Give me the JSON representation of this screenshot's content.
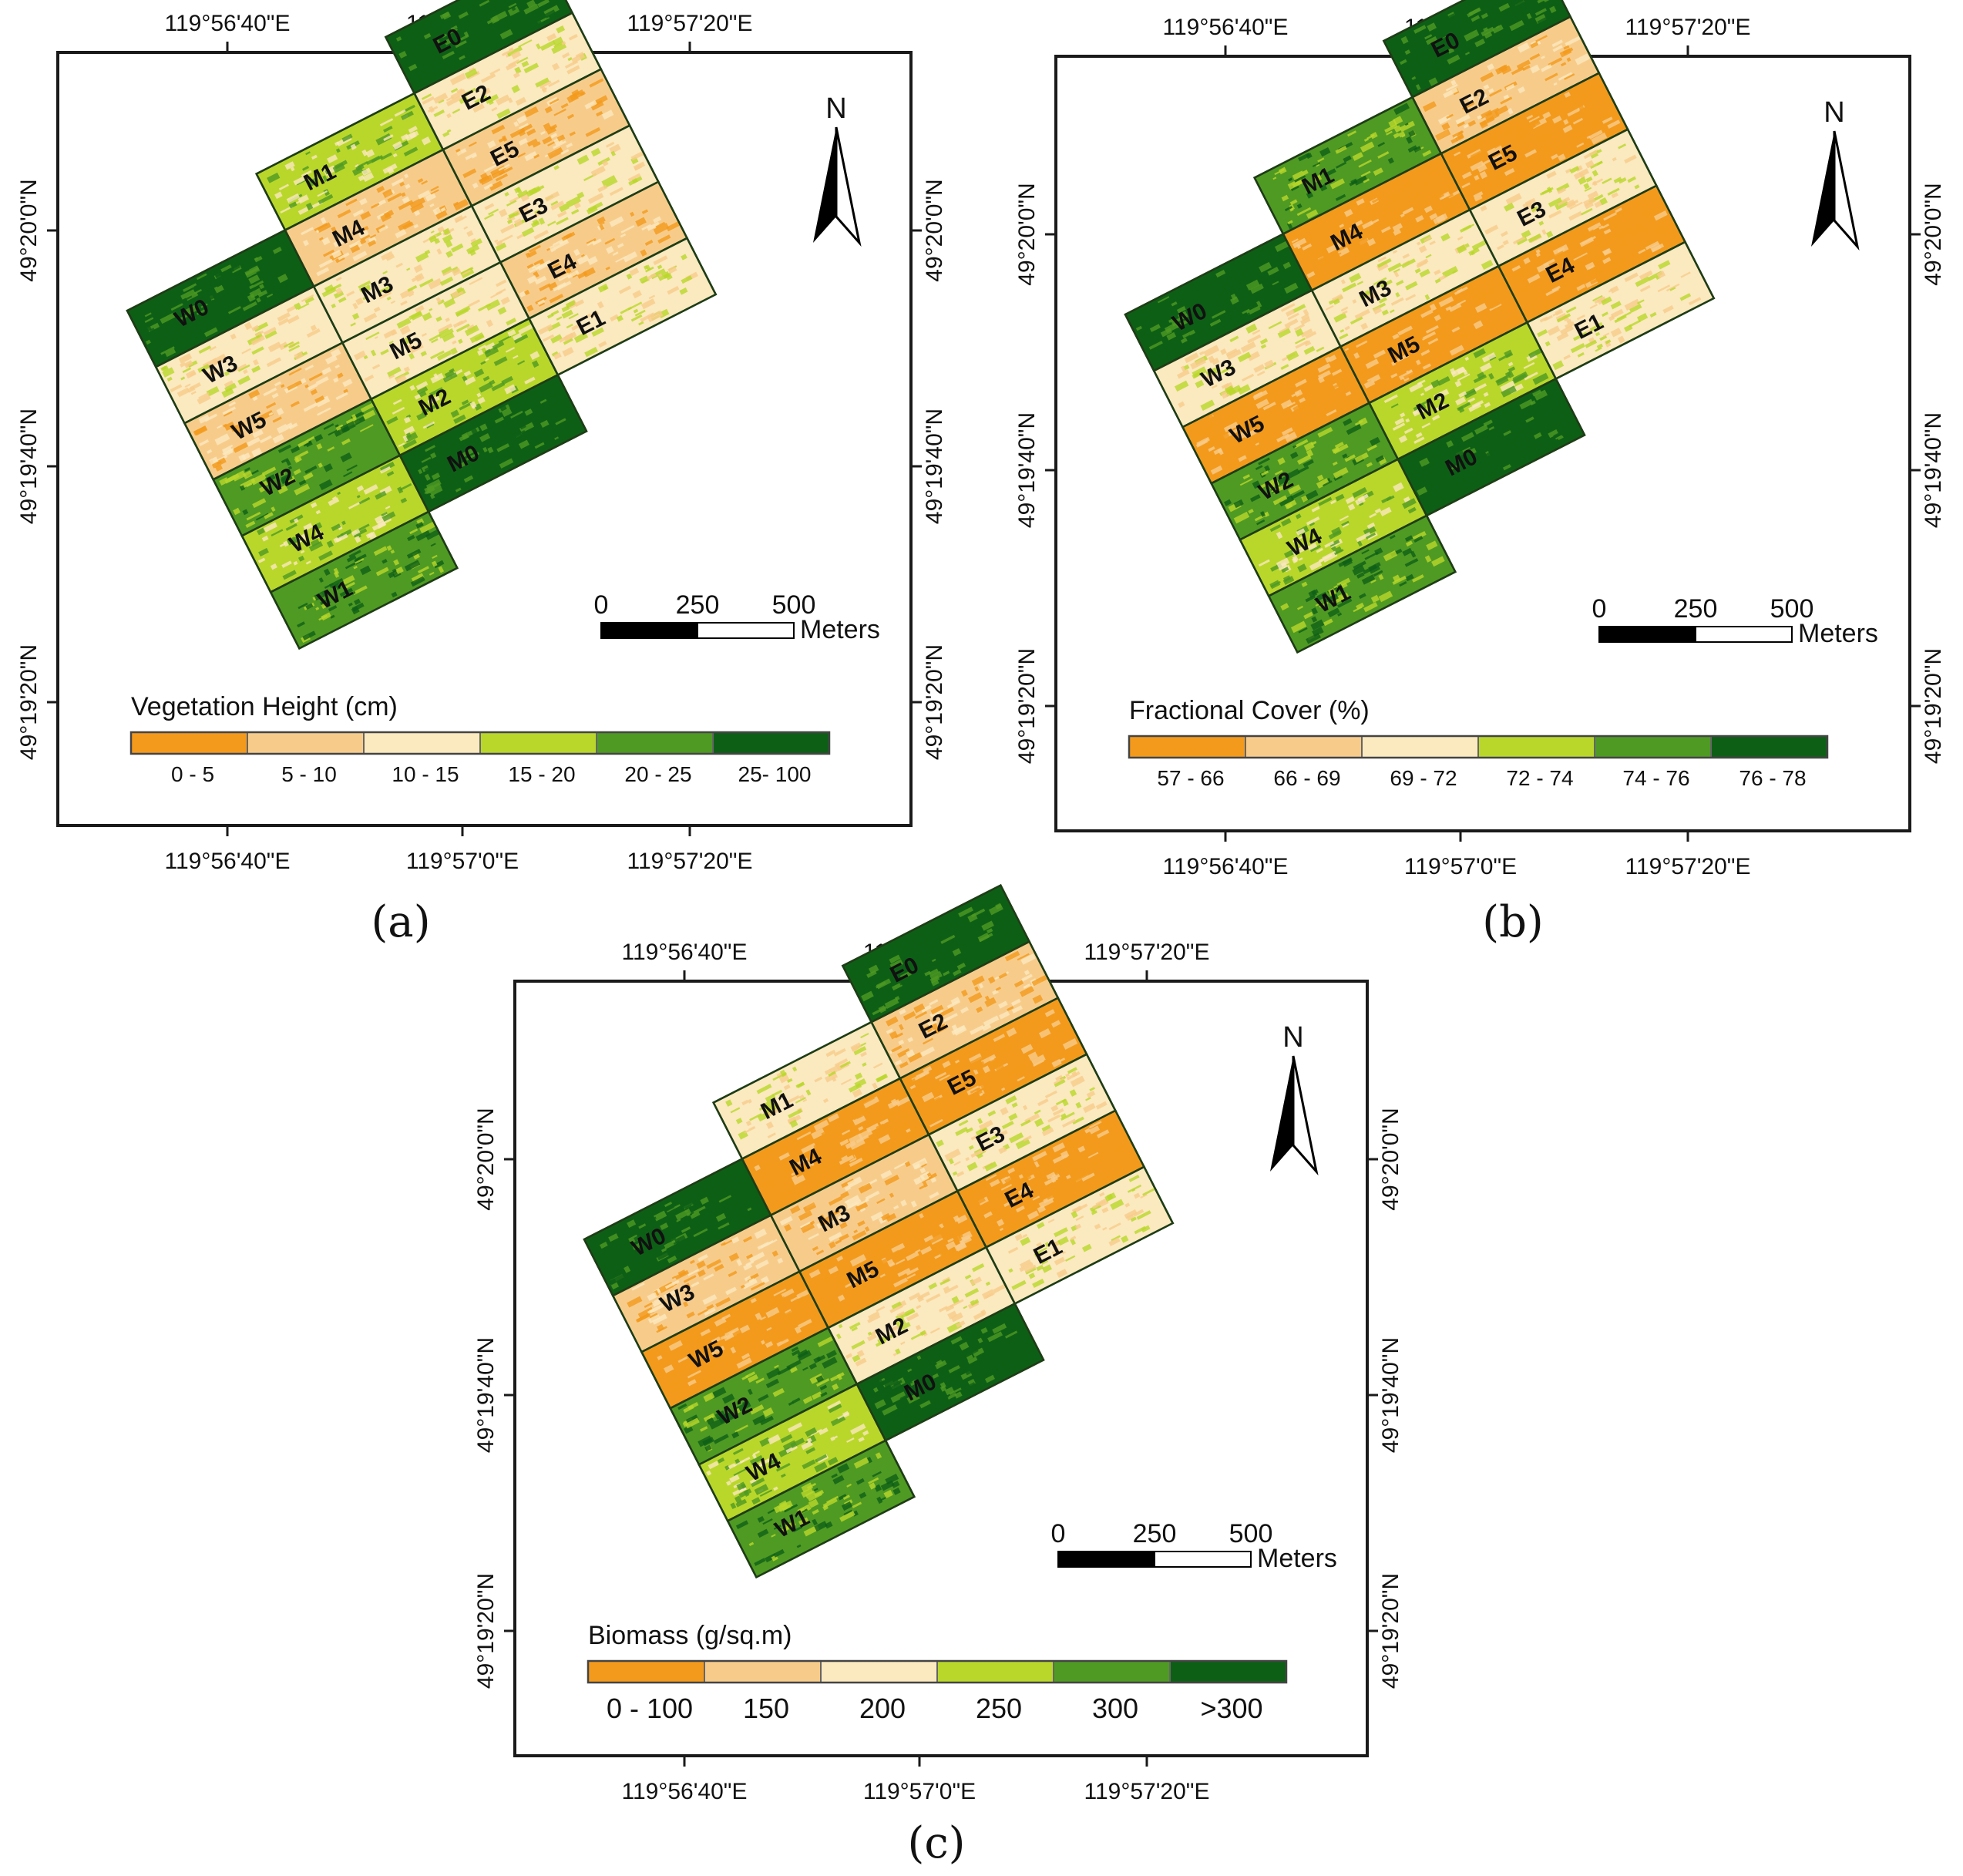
{
  "figure": {
    "colors": {
      "c1": "#f39a1c",
      "c2": "#f7cc8b",
      "c3": "#fbe9bf",
      "c4": "#b9d72b",
      "c5": "#4f9a23",
      "c6": "#0e5f16",
      "frame": "#1a1a1a",
      "field_border": "#1e3d16"
    },
    "north_label": "N",
    "scale_bar": {
      "ticks": [
        "0",
        "250",
        "500"
      ],
      "unit": "Meters"
    },
    "lon_ticks": [
      "119°56'40\"E",
      "119°57'0\"E",
      "119°57'20\"E"
    ],
    "lat_ticks": [
      "49°20'0\"N",
      "49°19'40\"N",
      "49°19'20\"N"
    ],
    "panels": [
      {
        "caption": "(a)",
        "legend_title": "Vegetation Height (cm)",
        "legend_labels": [
          "0 - 5",
          "5 - 10",
          "10 - 15",
          "15 - 20",
          "20 - 25",
          "25- 100"
        ],
        "fields": {
          "W0": 6,
          "W3": 3,
          "W5": 2,
          "W2": 5,
          "W4": 4,
          "W1": 5,
          "M1": 4,
          "M4": 2,
          "M3": 3,
          "M5": 3,
          "M2": 4,
          "M0": 6,
          "E0": 6,
          "E2": 3,
          "E5": 2,
          "E3": 3,
          "E4": 2,
          "E1": 3
        }
      },
      {
        "caption": "(b)",
        "legend_title": "Fractional Cover (%)",
        "legend_labels": [
          "57 - 66",
          "66 - 69",
          "69 - 72",
          "72 - 74",
          "74 - 76",
          "76 - 78"
        ],
        "fields": {
          "W0": 6,
          "W3": 3,
          "W5": 1,
          "W2": 5,
          "W4": 4,
          "W1": 5,
          "M1": 5,
          "M4": 1,
          "M3": 3,
          "M5": 1,
          "M2": 4,
          "M0": 6,
          "E0": 6,
          "E2": 2,
          "E5": 1,
          "E3": 3,
          "E4": 1,
          "E1": 3
        }
      },
      {
        "caption": "(c)",
        "legend_title": "Biomass (g/sq.m)",
        "legend_labels": [
          "0 - 100",
          "150",
          "200",
          "250",
          "300",
          ">300"
        ],
        "fields": {
          "W0": 6,
          "W3": 2,
          "W5": 1,
          "W2": 5,
          "W4": 4,
          "W1": 5,
          "M1": 3,
          "M4": 1,
          "M3": 2,
          "M5": 1,
          "M2": 3,
          "M0": 6,
          "E0": 6,
          "E2": 2,
          "E5": 1,
          "E3": 3,
          "E4": 1,
          "E1": 3
        }
      }
    ]
  }
}
